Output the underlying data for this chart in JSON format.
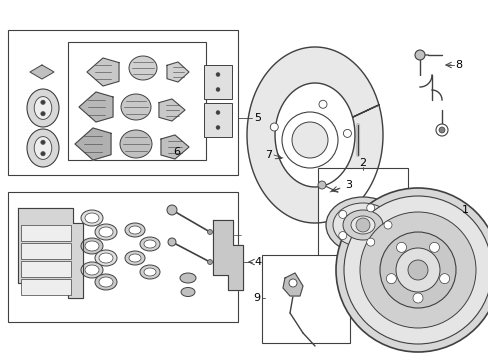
{
  "background_color": "#ffffff",
  "line_color": "#404040",
  "fig_width": 4.89,
  "fig_height": 3.6,
  "dpi": 100
}
